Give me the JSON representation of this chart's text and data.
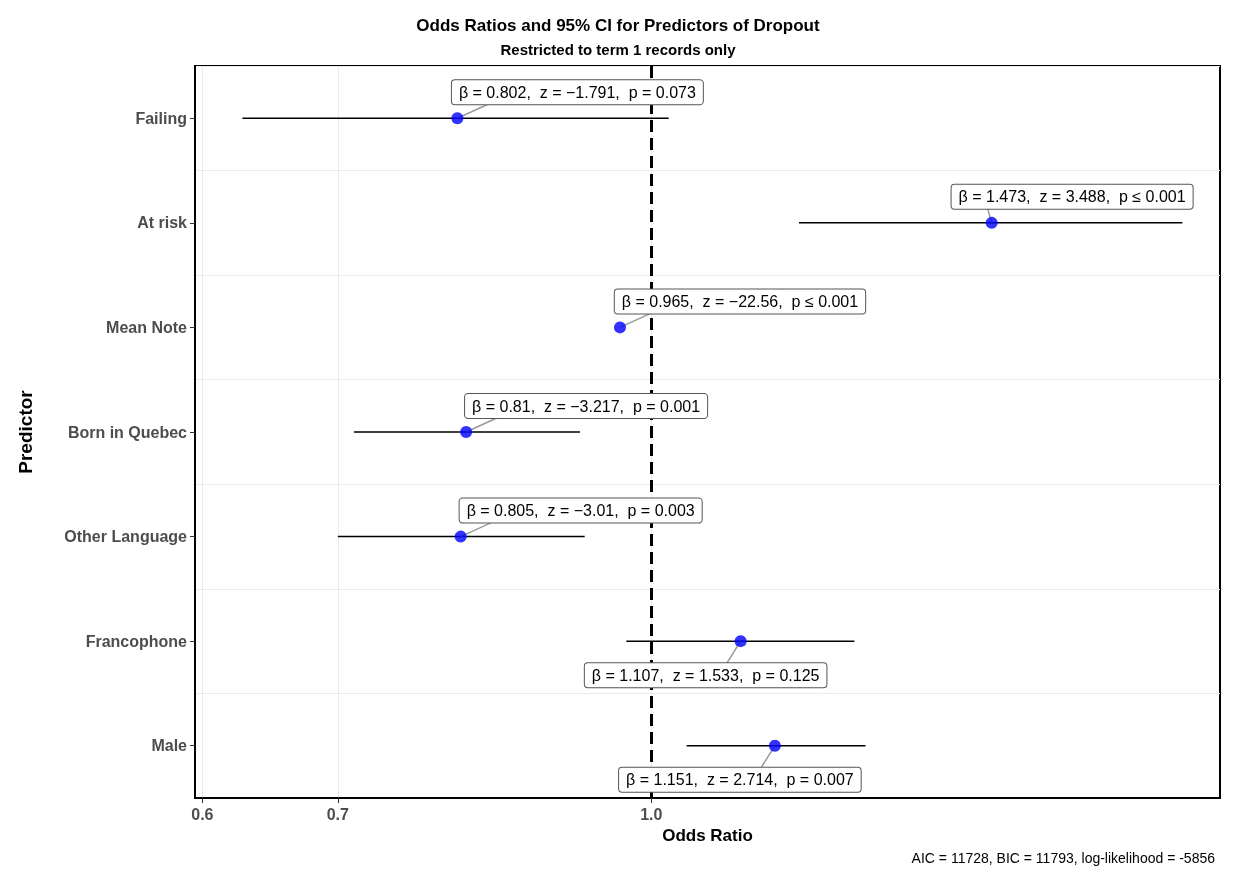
{
  "chart_data": {
    "type": "scatter",
    "title": "Odds Ratios and 95% CI for Predictors of Dropout",
    "subtitle": "Restricted to term 1 records only",
    "xlabel": "Odds Ratio",
    "ylabel": "Predictor",
    "categories": [
      "Failing",
      "At risk",
      "Mean Note",
      "Born in Quebec",
      "Other Language",
      "Francophone",
      "Male"
    ],
    "orientation": "horizontal",
    "series": [
      {
        "color": "#0000ff",
        "values": [
          0.802,
          1.473,
          0.965,
          0.81,
          0.805,
          1.107,
          1.151
        ],
        "errors": [
          [
            0.628,
            1.02
          ],
          [
            1.183,
            1.83
          ],
          null,
          [
            0.713,
            0.922
          ],
          [
            0.7,
            0.927
          ],
          [
            0.972,
            1.26
          ],
          [
            1.041,
            1.276
          ]
        ]
      }
    ],
    "log": "x",
    "xlim": [
      0.595,
      1.91
    ],
    "xticks": [
      0.6,
      0.7,
      {
        "value": 1,
        "label": "1.0"
      }
    ],
    "ref_lines": [
      {
        "axis": "x",
        "value": 1,
        "color": "#000000",
        "line_style": "dashed"
      }
    ],
    "grid": true,
    "marker": "circle",
    "annotations": [
      {
        "text": "β = 0.802,  z = −1.791,  p = 0.073",
        "x": 0.802,
        "y": "Failing"
      },
      {
        "text": "β = 1.473,  z = 3.488,  p ≤ 0.001",
        "x": 1.473,
        "y": "At risk"
      },
      {
        "text": "β = 0.965,  z = −22.56,  p ≤ 0.001",
        "x": 0.965,
        "y": "Mean Note"
      },
      {
        "text": "β = 0.81,  z = −3.217,  p = 0.001",
        "x": 0.81,
        "y": "Born in Quebec"
      },
      {
        "text": "β = 0.805,  z = −3.01,  p = 0.003",
        "x": 0.805,
        "y": "Other Language"
      },
      {
        "text": "β = 1.107,  z = 1.533,  p = 0.125",
        "x": 1.107,
        "y": "Francophone"
      },
      {
        "text": "β = 1.151,  z = 2.714,  p = 0.007",
        "x": 1.151,
        "y": "Male"
      },
      "AIC = 11728, BIC = 11793, log-likelihood = -5856"
    ]
  }
}
